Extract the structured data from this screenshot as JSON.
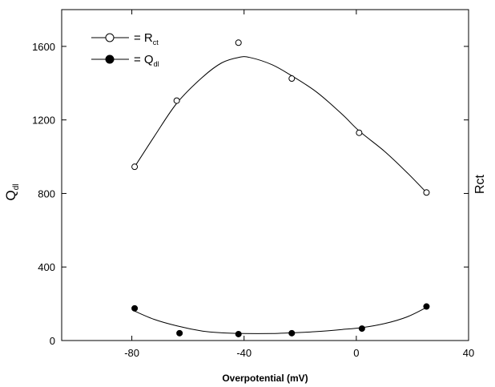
{
  "chart_data": {
    "type": "scatter",
    "xlabel": "Overpotential (mV)",
    "ylabel_left": {
      "main": "Q",
      "sub": "dl"
    },
    "ylabel_right": "Rct",
    "xlim": [
      -105,
      40
    ],
    "ylim": [
      0,
      1800
    ],
    "xticks": [
      -80,
      -40,
      0,
      40
    ],
    "yticks": [
      0,
      400,
      800,
      1200,
      1600
    ],
    "grid": false,
    "legend_position": "top-left",
    "series": [
      {
        "key": "rct",
        "legend_main": "= R",
        "legend_sub": "ct",
        "marker": "open-circle",
        "x": [
          -79,
          -64,
          -42,
          -23,
          1,
          25
        ],
        "y": [
          945,
          1305,
          1620,
          1425,
          1130,
          805
        ],
        "curve": [
          [
            -79,
            945
          ],
          [
            -72,
            1110
          ],
          [
            -64,
            1290
          ],
          [
            -55,
            1430
          ],
          [
            -48,
            1510
          ],
          [
            -42,
            1540
          ],
          [
            -38,
            1540
          ],
          [
            -30,
            1500
          ],
          [
            -23,
            1440
          ],
          [
            -14,
            1350
          ],
          [
            -5,
            1230
          ],
          [
            1,
            1140
          ],
          [
            10,
            1030
          ],
          [
            18,
            915
          ],
          [
            25,
            805
          ]
        ]
      },
      {
        "key": "qdl",
        "legend_main": "= Q",
        "legend_sub": "dl",
        "marker": "filled-circle",
        "x": [
          -79,
          -63,
          -42,
          -23,
          2,
          25
        ],
        "y": [
          175,
          40,
          35,
          40,
          65,
          185
        ],
        "curve": [
          [
            -79,
            160
          ],
          [
            -72,
            115
          ],
          [
            -64,
            80
          ],
          [
            -55,
            52
          ],
          [
            -48,
            42
          ],
          [
            -40,
            38
          ],
          [
            -30,
            38
          ],
          [
            -23,
            42
          ],
          [
            -15,
            48
          ],
          [
            -5,
            60
          ],
          [
            2,
            70
          ],
          [
            10,
            92
          ],
          [
            18,
            128
          ],
          [
            25,
            180
          ]
        ]
      }
    ]
  }
}
